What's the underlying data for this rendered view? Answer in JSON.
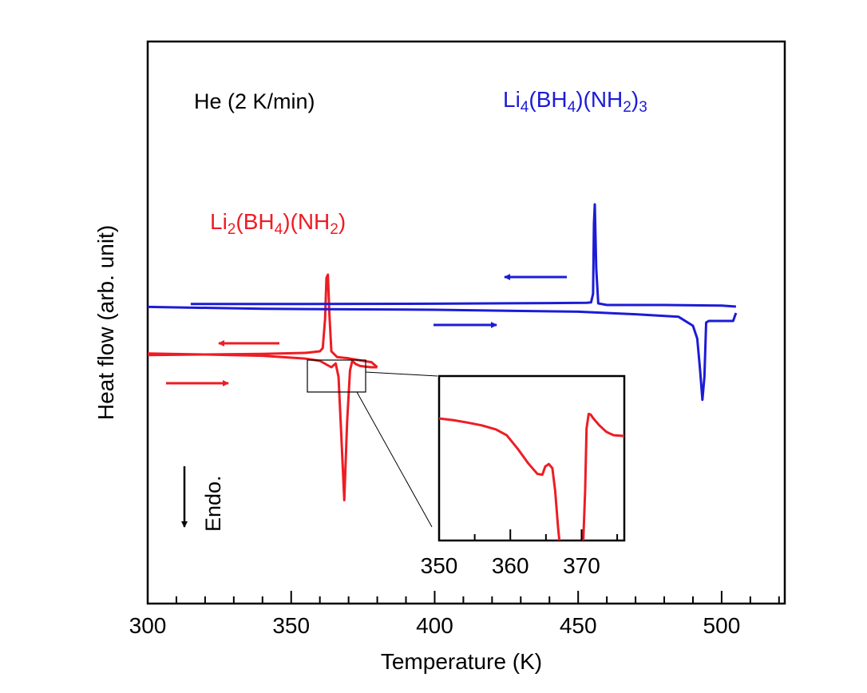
{
  "chart_data": [
    {
      "type": "line",
      "title": "",
      "xlabel": "Temperature (K)",
      "ylabel": "Heat flow (arb. unit)",
      "xlim": [
        300,
        522
      ],
      "ylim": [
        0,
        100
      ],
      "xticks": [
        300,
        350,
        400,
        450,
        500
      ],
      "xticklabels": [
        "300",
        "350",
        "400",
        "450",
        "500"
      ],
      "grid": false,
      "annotations": {
        "atmosphere": "He (2 K/min)",
        "endo": "Endo."
      },
      "series_labels": [
        {
          "base": "Li",
          "s1": "2",
          "mid1": "(BH",
          "s2": "4",
          "mid2": ")(NH",
          "s3": "2",
          "end": ")",
          "s4": "",
          "color": "#ee1c24"
        },
        {
          "base": "Li",
          "s1": "4",
          "mid1": "(BH",
          "s2": "4",
          "mid2": ")(NH",
          "s3": "2",
          "end": ")",
          "s4": "3",
          "color": "#1c1cd6"
        }
      ],
      "series": [
        {
          "color": "#ee1c24",
          "direction": "heating",
          "x": [
            300,
            320,
            340,
            355,
            360,
            364,
            365.5,
            366.5,
            367.5,
            368.5,
            369.5,
            370.5,
            371.3,
            372.5,
            374,
            376,
            378,
            380
          ],
          "y": [
            39.3,
            39.0,
            38.6,
            37.7,
            37.0,
            35.0,
            36.2,
            32.0,
            13.0,
            -6.6,
            18.0,
            34.0,
            37.0,
            36.0,
            35.4,
            35.2,
            35.0,
            35.0
          ]
        },
        {
          "color": "#ee1c24",
          "direction": "cooling",
          "x": [
            380,
            378,
            375,
            370,
            366,
            364,
            363.3,
            362.8,
            362.3,
            361.8,
            361.0,
            360,
            355,
            340,
            320,
            300
          ],
          "y": [
            35.0,
            36.6,
            37.0,
            37.8,
            38.2,
            40.0,
            52.0,
            64.0,
            63.0,
            50.0,
            41.0,
            40.0,
            39.5,
            39.2,
            39.0,
            38.8
          ]
        },
        {
          "color": "#1c1cd6",
          "direction": "heating",
          "x": [
            300,
            340,
            400,
            450,
            470,
            485,
            490,
            491.5,
            492.5,
            493.3,
            494,
            494.6,
            495.5,
            497,
            500,
            504,
            505
          ],
          "y": [
            53.9,
            53.3,
            53.0,
            52.4,
            51.6,
            50.8,
            48.0,
            44.0,
            34.0,
            24.8,
            32.0,
            49.0,
            49.5,
            49.5,
            49.5,
            49.5,
            52.0
          ]
        },
        {
          "color": "#1c1cd6",
          "direction": "cooling",
          "x": [
            505,
            500,
            480,
            460,
            457,
            456.3,
            455.8,
            455.5,
            455.2,
            454.5,
            453,
            440,
            400,
            350,
            315
          ],
          "y": [
            54.0,
            54.3,
            54.5,
            54.5,
            55.0,
            66.0,
            86.0,
            80.0,
            58.0,
            55.3,
            55.2,
            55.1,
            54.9,
            54.8,
            54.8
          ]
        }
      ]
    },
    {
      "type": "line",
      "title": "",
      "xlabel": "",
      "ylabel": "",
      "xlim": [
        350,
        376
      ],
      "ylim": [
        0,
        100
      ],
      "xticks": [
        350,
        360,
        370
      ],
      "xticklabels": [
        "350",
        "360",
        "370"
      ],
      "grid": false,
      "series": [
        {
          "color": "#ee1c24",
          "x": [
            350,
            352,
            354,
            356,
            358,
            359.5,
            361,
            362.5,
            363.8,
            364.5,
            364.9,
            365.4,
            365.9,
            366.3,
            366.7,
            367.0
          ],
          "y": [
            74.2,
            73.2,
            71.7,
            70.0,
            67.5,
            64.0,
            56.0,
            47.0,
            40.5,
            40.0,
            45.0,
            46.5,
            44.0,
            30.0,
            8.0,
            -5.0
          ]
        },
        {
          "color": "#ee1c24",
          "x": [
            370.2,
            370.5,
            370.7,
            371.0,
            371.3,
            371.6,
            372.5,
            373.5,
            374.5,
            376
          ],
          "y": [
            -5.0,
            30.0,
            68.0,
            77.0,
            76.5,
            74.5,
            70.0,
            66.0,
            64.0,
            63.5
          ]
        }
      ]
    }
  ]
}
